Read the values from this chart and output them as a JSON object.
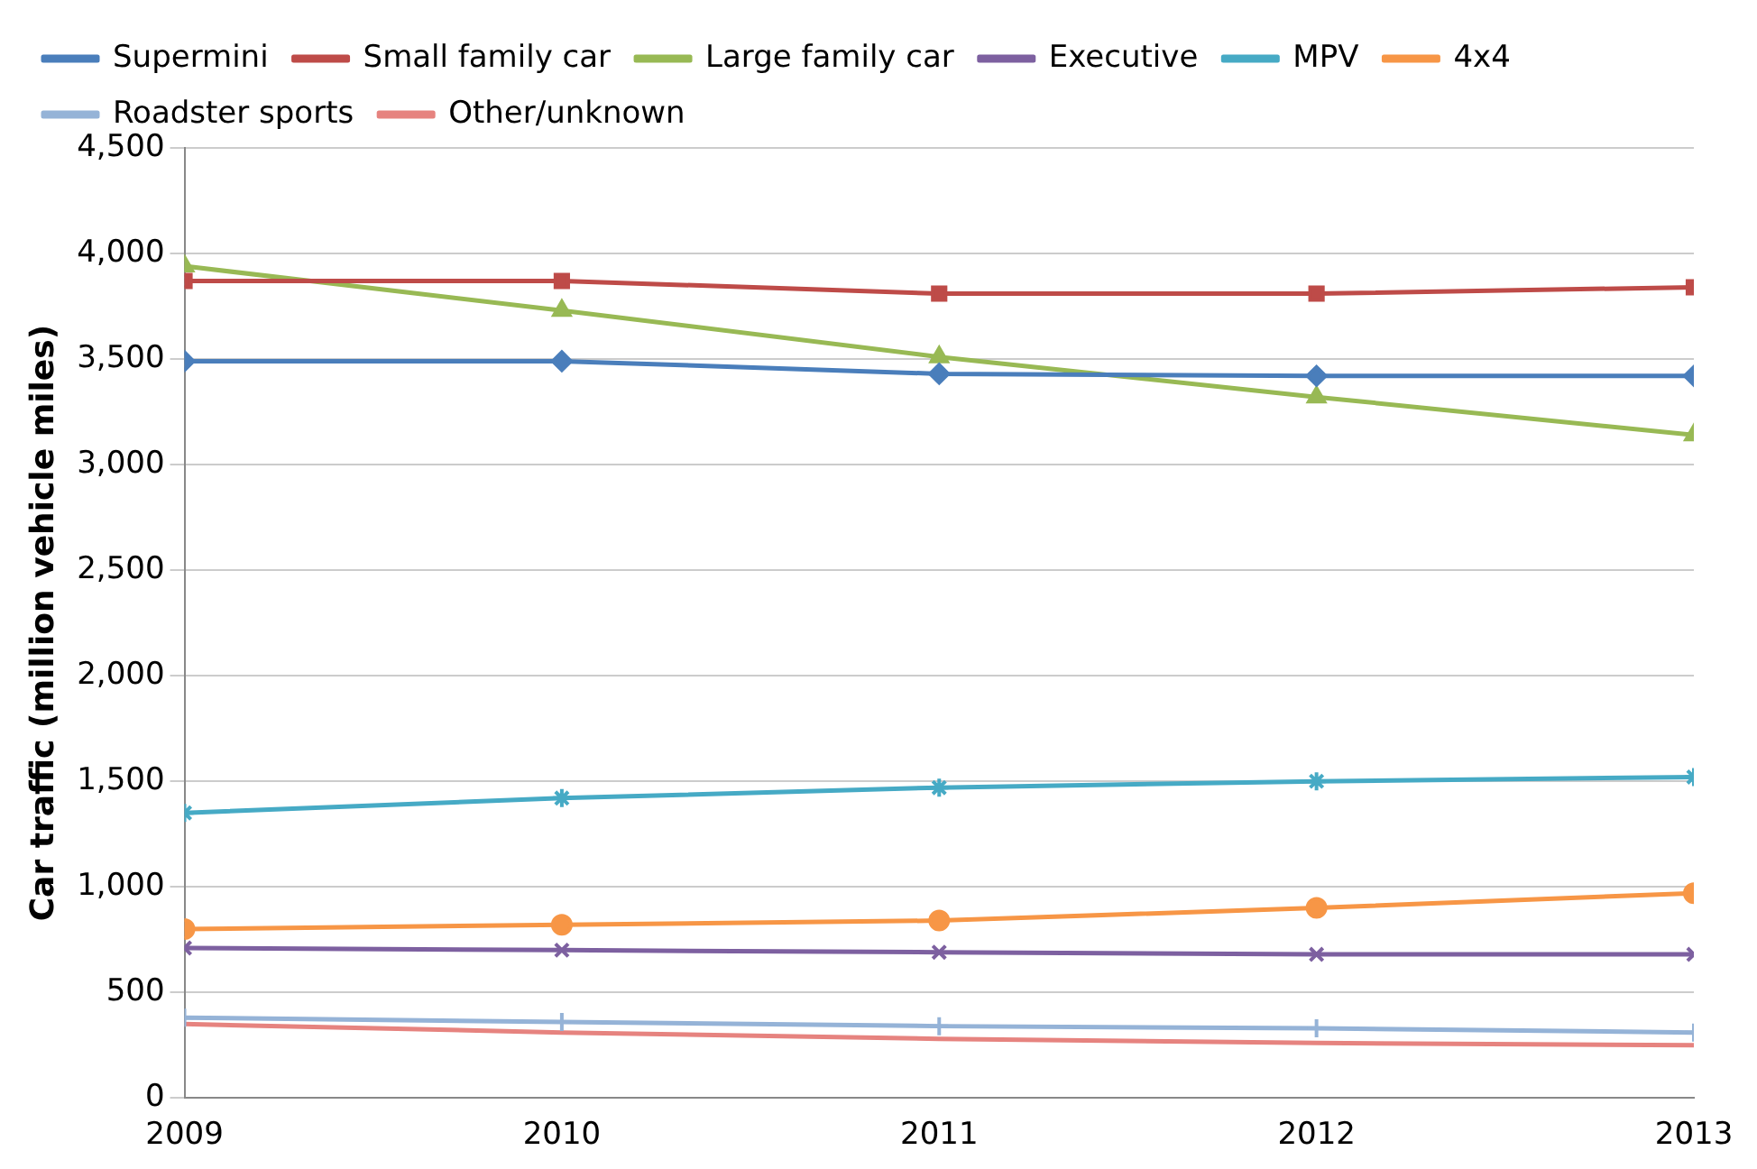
{
  "chart_data": {
    "type": "line",
    "ylabel": "Car traffic (million vehicle miles)",
    "x": [
      2009,
      2010,
      2011,
      2012,
      2013
    ],
    "xlim": [
      2009,
      2013
    ],
    "xticks": [
      2009,
      2010,
      2011,
      2012,
      2013
    ],
    "ylim": [
      0,
      4500
    ],
    "yticks": [
      0,
      500,
      {
        "value": 1000,
        "label": "1,000"
      },
      {
        "value": 1500,
        "label": "1,500"
      },
      {
        "value": 2000,
        "label": "2,000"
      },
      {
        "value": 2500,
        "label": "2,500"
      },
      {
        "value": 3000,
        "label": "3,000"
      },
      {
        "value": 3500,
        "label": "3,500"
      },
      {
        "value": 4000,
        "label": "4,000"
      },
      {
        "value": 4500,
        "label": "4,500"
      }
    ],
    "grid": "y",
    "legend": "top",
    "series": [
      {
        "name": "Supermini",
        "color": "#4a7ebb",
        "marker": "diamond",
        "values": [
          3490,
          3490,
          3430,
          3420,
          3420
        ]
      },
      {
        "name": "Small family car",
        "color": "#be4b48",
        "marker": "square",
        "values": [
          3870,
          3870,
          3810,
          3810,
          3840
        ]
      },
      {
        "name": "Large family car",
        "color": "#98b954",
        "marker": "triangle",
        "values": [
          3940,
          3730,
          3510,
          3320,
          3140
        ]
      },
      {
        "name": "Executive",
        "color": "#7d60a0",
        "marker": "x",
        "values": [
          710,
          700,
          690,
          680,
          680
        ]
      },
      {
        "name": "MPV",
        "color": "#46aac5",
        "marker": "cross",
        "values": [
          1350,
          1420,
          1470,
          1500,
          1520
        ]
      },
      {
        "name": "4x4",
        "color": "#f79646",
        "marker": "circle",
        "values": [
          800,
          820,
          840,
          900,
          970
        ]
      },
      {
        "name": "Roadster sports",
        "color": "#95b3d7",
        "marker": "plus",
        "values": [
          380,
          360,
          340,
          330,
          310
        ]
      },
      {
        "name": "Other/unknown",
        "color": "#e6837f",
        "marker": "none",
        "values": [
          350,
          310,
          280,
          260,
          250
        ]
      }
    ]
  }
}
